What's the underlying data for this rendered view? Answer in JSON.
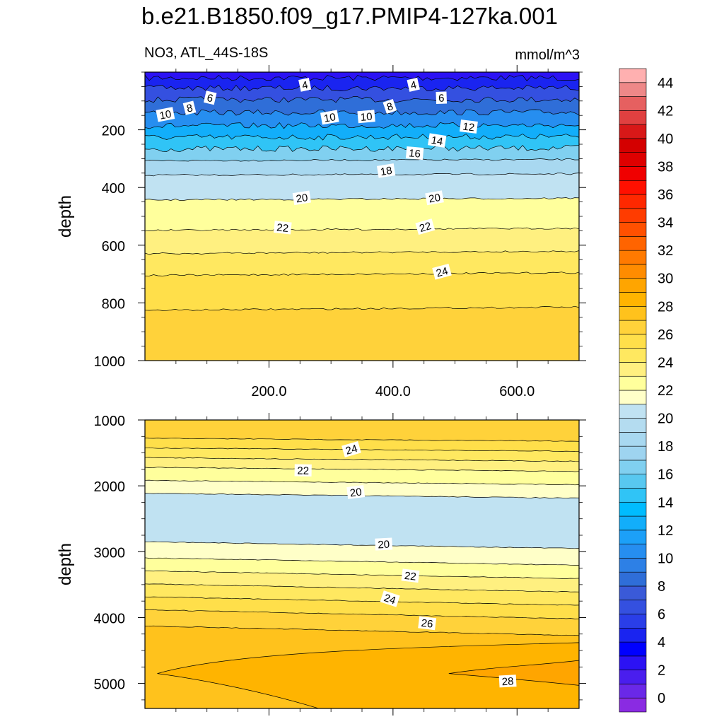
{
  "title": "b.e21.B1850.f09_g17.PMIP4-127ka.001",
  "subtitle_left": "NO3, ATL_44S-18S",
  "subtitle_right": "mmol/m^3",
  "chart_data": [
    {
      "type": "contour",
      "panel": "upper",
      "variable": "NO3",
      "xlabel": "",
      "ylabel": "depth",
      "xlim": [
        0,
        700
      ],
      "ylim": [
        1000,
        0
      ],
      "yticks": [
        200,
        400,
        600,
        800,
        1000
      ],
      "xticks": [
        200.0,
        400.0,
        600.0
      ],
      "xtick_labels": [
        "200.0",
        "400.0",
        "600.0"
      ],
      "isolines": [
        {
          "value": 2,
          "depth": 20
        },
        {
          "value": 4,
          "depth": 55
        },
        {
          "value": 6,
          "depth": 95
        },
        {
          "value": 8,
          "depth": 140
        },
        {
          "value": 10,
          "depth": 185
        },
        {
          "value": 12,
          "depth": 225
        },
        {
          "value": 14,
          "depth": 265
        },
        {
          "value": 16,
          "depth": 305
        },
        {
          "value": 18,
          "depth": 355
        },
        {
          "value": 20,
          "depth": 440
        },
        {
          "value": 22,
          "depth": 545
        },
        {
          "value": 23,
          "depth": 625
        },
        {
          "value": 24,
          "depth": 700
        },
        {
          "value": 25,
          "depth": 820
        }
      ],
      "contour_labels": [
        {
          "text": "4",
          "x": 258,
          "depth": 45
        },
        {
          "text": "4",
          "x": 433,
          "depth": 45
        },
        {
          "text": "6",
          "x": 105,
          "depth": 90
        },
        {
          "text": "6",
          "x": 478,
          "depth": 90
        },
        {
          "text": "8",
          "x": 72,
          "depth": 125
        },
        {
          "text": "8",
          "x": 395,
          "depth": 120
        },
        {
          "text": "10",
          "x": 33,
          "depth": 148
        },
        {
          "text": "10",
          "x": 298,
          "depth": 158
        },
        {
          "text": "10",
          "x": 357,
          "depth": 155
        },
        {
          "text": "12",
          "x": 522,
          "depth": 190
        },
        {
          "text": "14",
          "x": 471,
          "depth": 238
        },
        {
          "text": "16",
          "x": 435,
          "depth": 282
        },
        {
          "text": "18",
          "x": 389,
          "depth": 343
        },
        {
          "text": "20",
          "x": 253,
          "depth": 437
        },
        {
          "text": "20",
          "x": 467,
          "depth": 437
        },
        {
          "text": "22",
          "x": 222,
          "depth": 540
        },
        {
          "text": "22",
          "x": 452,
          "depth": 537
        },
        {
          "text": "24",
          "x": 479,
          "depth": 693
        }
      ]
    },
    {
      "type": "contour",
      "panel": "lower",
      "variable": "NO3",
      "xlabel": "",
      "ylabel": "depth",
      "xlim": [
        0,
        700
      ],
      "ylim": [
        5380,
        1000
      ],
      "yticks": [
        1000,
        2000,
        3000,
        4000,
        5000
      ],
      "isolines": [
        {
          "value": 25,
          "depth": 1300
        },
        {
          "value": 24,
          "depth": 1450
        },
        {
          "value": 23,
          "depth": 1600
        },
        {
          "value": 22,
          "depth": 1750
        },
        {
          "value": 21,
          "depth": 1950
        },
        {
          "value": 20,
          "depth": 2150
        },
        {
          "value": 20,
          "depth": 2900
        },
        {
          "value": 21,
          "depth": 3150
        },
        {
          "value": 22,
          "depth": 3350
        },
        {
          "value": 23,
          "depth": 3550
        },
        {
          "value": 24,
          "depth": 3750
        },
        {
          "value": 25,
          "depth": 3950
        },
        {
          "value": 26,
          "depth": 4200
        }
      ],
      "contour_labels": [
        {
          "text": "24",
          "x": 333,
          "depth": 1450
        },
        {
          "text": "22",
          "x": 255,
          "depth": 1770
        },
        {
          "text": "20",
          "x": 340,
          "depth": 2100
        },
        {
          "text": "20",
          "x": 385,
          "depth": 2890
        },
        {
          "text": "22",
          "x": 428,
          "depth": 3370
        },
        {
          "text": "24",
          "x": 395,
          "depth": 3720
        },
        {
          "text": "26",
          "x": 455,
          "depth": 4090
        },
        {
          "text": "28",
          "x": 585,
          "depth": 4970
        }
      ]
    }
  ],
  "colorbar": {
    "tick_labels": [
      "0",
      "2",
      "4",
      "6",
      "8",
      "10",
      "12",
      "14",
      "16",
      "18",
      "20",
      "22",
      "24",
      "26",
      "28",
      "30",
      "32",
      "34",
      "36",
      "38",
      "40",
      "42",
      "44"
    ],
    "colors": [
      "#8a2be2",
      "#6a28e8",
      "#4a1eee",
      "#2c12f4",
      "#0000ff",
      "#1a24f0",
      "#2a3ee8",
      "#3450e0",
      "#3a5ad8",
      "#2f6ed8",
      "#2d80e6",
      "#268ef0",
      "#1ca0f8",
      "#12aefa",
      "#00bcff",
      "#30c4f6",
      "#58c8f0",
      "#80d0f0",
      "#9ed4f0",
      "#a8d8f0",
      "#b4dcf0",
      "#c0e2f2",
      "#ffffc8",
      "#ffff9c",
      "#fff080",
      "#ffe860",
      "#ffdf4a",
      "#ffd23a",
      "#ffc21c",
      "#ffb400",
      "#ffa500",
      "#ff8c00",
      "#ff7a00",
      "#ff6400",
      "#ff5000",
      "#ff3c00",
      "#ff2800",
      "#ff1000",
      "#f00000",
      "#de0000",
      "#d40000",
      "#d81818",
      "#e04040",
      "#e66060",
      "#ee8888",
      "#ffb0b0"
    ]
  }
}
